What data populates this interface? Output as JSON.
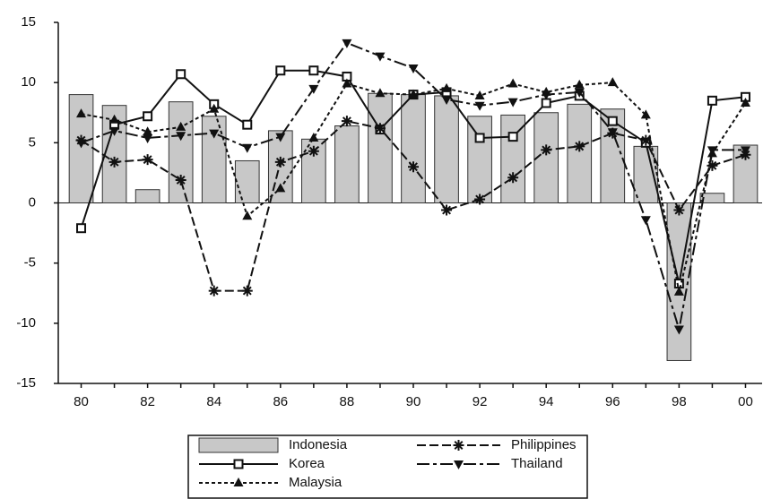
{
  "chart_data": {
    "type": "bar",
    "categories": [
      "80",
      null,
      "82",
      null,
      "84",
      null,
      "86",
      null,
      "88",
      null,
      "90",
      null,
      "92",
      null,
      "94",
      null,
      "96",
      null,
      "98",
      null,
      "00"
    ],
    "series": [
      {
        "name": "Indonesia",
        "type": "bar",
        "color": "#c8c8c8",
        "values": [
          9.0,
          8.1,
          1.1,
          8.4,
          7.2,
          3.5,
          6.0,
          5.3,
          6.4,
          9.1,
          9.0,
          8.9,
          7.2,
          7.3,
          7.5,
          8.2,
          7.8,
          4.7,
          -13.1,
          0.8,
          4.8
        ]
      },
      {
        "name": "Korea",
        "type": "line",
        "marker": "square",
        "dash": "solid",
        "color": "#111111",
        "values": [
          -2.1,
          6.5,
          7.2,
          10.7,
          8.2,
          6.5,
          11.0,
          11.0,
          10.5,
          6.1,
          9.0,
          9.2,
          5.4,
          5.5,
          8.3,
          8.9,
          6.8,
          5.0,
          -6.7,
          8.5,
          8.8
        ]
      },
      {
        "name": "Malaysia",
        "type": "line",
        "marker": "triangle",
        "dash": "short",
        "color": "#111111",
        "values": [
          7.4,
          6.9,
          5.9,
          6.3,
          7.8,
          -1.1,
          1.2,
          5.4,
          9.9,
          9.1,
          9.0,
          9.5,
          8.9,
          9.9,
          9.2,
          9.8,
          10.0,
          7.3,
          -7.4,
          4.1,
          8.3
        ]
      },
      {
        "name": "Philippines",
        "type": "line",
        "marker": "star",
        "dash": "long",
        "color": "#111111",
        "values": [
          5.2,
          3.4,
          3.6,
          1.9,
          -7.3,
          -7.3,
          3.4,
          4.3,
          6.8,
          6.2,
          3.0,
          -0.6,
          0.3,
          2.1,
          4.4,
          4.7,
          5.8,
          5.2,
          -0.6,
          3.1,
          4.0
        ]
      },
      {
        "name": "Thailand",
        "type": "line",
        "marker": "down-triangle",
        "dash": "dashdot",
        "color": "#111111",
        "values": [
          5.0,
          6.0,
          5.4,
          5.6,
          5.8,
          4.6,
          5.5,
          9.5,
          13.3,
          12.2,
          11.2,
          8.6,
          8.1,
          8.4,
          9.0,
          9.2,
          5.9,
          -1.4,
          -10.5,
          4.4,
          4.4
        ]
      }
    ],
    "ylim": [
      -15,
      15
    ],
    "yticks": [
      -15,
      -10,
      -5,
      0,
      5,
      10,
      15
    ],
    "legend": "bottom",
    "grid": false
  }
}
